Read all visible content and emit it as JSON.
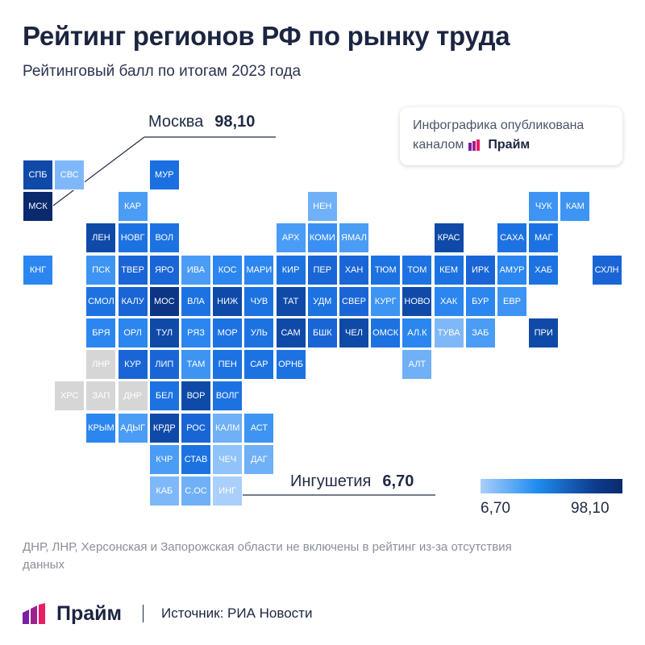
{
  "title": "Рейтинг регионов РФ по рынку труда",
  "subtitle": "Рейтинговый балл по итогам 2023 года",
  "publication": {
    "line1": "Инфографика опубликована",
    "line2": "каналом",
    "brand": "Прайм"
  },
  "callouts": {
    "top": {
      "name": "Москва",
      "value": "98,10"
    },
    "bottom": {
      "name": "Ингушетия",
      "value": "6,70"
    }
  },
  "legend": {
    "min": "6,70",
    "max": "98,10",
    "color_low": "#a9cffb",
    "color_high": "#0b2a6d"
  },
  "note": "ДНР, ЛНР, Херсонская и Запорожская области не включены в рейтинг из-за отсутствия данных",
  "footer": {
    "brand": "Прайм",
    "source": "Источник: РИА Новости"
  },
  "colors": {
    "na": "#d6d6d6",
    "brand_purple": "#7b1fa2",
    "brand_pink": "#e91e63"
  },
  "tiles": [
    {
      "label": "СПБ",
      "col": 0,
      "row": 0,
      "color": "#0f4aa8"
    },
    {
      "label": "СВС",
      "col": 1,
      "row": 0,
      "color": "#7fb8f8"
    },
    {
      "label": "МУР",
      "col": 4,
      "row": 0,
      "color": "#1b6fe0"
    },
    {
      "label": "МСК",
      "col": 0,
      "row": 1,
      "color": "#0b2a6d"
    },
    {
      "label": "КАР",
      "col": 3,
      "row": 1,
      "color": "#4b9cf5"
    },
    {
      "label": "НЕН",
      "col": 9,
      "row": 1,
      "color": "#6fb0f7"
    },
    {
      "label": "ЧУК",
      "col": 16,
      "row": 1,
      "color": "#3d94f3"
    },
    {
      "label": "КАМ",
      "col": 17,
      "row": 1,
      "color": "#3d94f3"
    },
    {
      "label": "ЛЕН",
      "col": 2,
      "row": 2,
      "color": "#0f4aa8"
    },
    {
      "label": "НОВГ",
      "col": 3,
      "row": 2,
      "color": "#1d72e2"
    },
    {
      "label": "ВОЛ",
      "col": 4,
      "row": 2,
      "color": "#1d72e2"
    },
    {
      "label": "АРХ",
      "col": 8,
      "row": 2,
      "color": "#4b9cf5"
    },
    {
      "label": "КОМИ",
      "col": 9,
      "row": 2,
      "color": "#3a8ff2"
    },
    {
      "label": "ЯМАЛ",
      "col": 10,
      "row": 2,
      "color": "#4b9cf5"
    },
    {
      "label": "КРАС",
      "col": 13,
      "row": 2,
      "color": "#0f4aa8"
    },
    {
      "label": "САХА",
      "col": 15,
      "row": 2,
      "color": "#1d72e2"
    },
    {
      "label": "МАГ",
      "col": 16,
      "row": 2,
      "color": "#1d72e2"
    },
    {
      "label": "КНГ",
      "col": 0,
      "row": 3,
      "color": "#2c86f0"
    },
    {
      "label": "ПСК",
      "col": 2,
      "row": 3,
      "color": "#3d94f3"
    },
    {
      "label": "ТВЕР",
      "col": 3,
      "row": 3,
      "color": "#1a65d6"
    },
    {
      "label": "ЯРО",
      "col": 4,
      "row": 3,
      "color": "#1a65d6"
    },
    {
      "label": "ИВА",
      "col": 5,
      "row": 3,
      "color": "#4b9cf5"
    },
    {
      "label": "КОС",
      "col": 6,
      "row": 3,
      "color": "#2c86f0"
    },
    {
      "label": "МАРИ",
      "col": 7,
      "row": 3,
      "color": "#2c86f0"
    },
    {
      "label": "КИР",
      "col": 8,
      "row": 3,
      "color": "#1d72e2"
    },
    {
      "label": "ПЕР",
      "col": 9,
      "row": 3,
      "color": "#1a65d6"
    },
    {
      "label": "ХАН",
      "col": 10,
      "row": 3,
      "color": "#1a65d6"
    },
    {
      "label": "ТЮМ",
      "col": 11,
      "row": 3,
      "color": "#1d72e2"
    },
    {
      "label": "ТОМ",
      "col": 12,
      "row": 3,
      "color": "#1d72e2"
    },
    {
      "label": "КЕМ",
      "col": 13,
      "row": 3,
      "color": "#1d72e2"
    },
    {
      "label": "ИРК",
      "col": 14,
      "row": 3,
      "color": "#1a65d6"
    },
    {
      "label": "АМУР",
      "col": 15,
      "row": 3,
      "color": "#2c86f0"
    },
    {
      "label": "ХАБ",
      "col": 16,
      "row": 3,
      "color": "#1d72e2"
    },
    {
      "label": "СХЛН",
      "col": 18,
      "row": 3,
      "color": "#1a65d6"
    },
    {
      "label": "СМОЛ",
      "col": 2,
      "row": 4,
      "color": "#1d72e2"
    },
    {
      "label": "КАЛУ",
      "col": 3,
      "row": 4,
      "color": "#1a65d6"
    },
    {
      "label": "МОС",
      "col": 4,
      "row": 4,
      "color": "#0c3585"
    },
    {
      "label": "ВЛА",
      "col": 5,
      "row": 4,
      "color": "#1d72e2"
    },
    {
      "label": "НИЖ",
      "col": 6,
      "row": 4,
      "color": "#0f4aa8"
    },
    {
      "label": "ЧУВ",
      "col": 7,
      "row": 4,
      "color": "#1d72e2"
    },
    {
      "label": "ТАТ",
      "col": 8,
      "row": 4,
      "color": "#0f4aa8"
    },
    {
      "label": "УДМ",
      "col": 9,
      "row": 4,
      "color": "#1d72e2"
    },
    {
      "label": "СВЕР",
      "col": 10,
      "row": 4,
      "color": "#1a65d6"
    },
    {
      "label": "КУРГ",
      "col": 11,
      "row": 4,
      "color": "#3d94f3"
    },
    {
      "label": "НОВО",
      "col": 12,
      "row": 4,
      "color": "#0f4aa8"
    },
    {
      "label": "ХАК",
      "col": 13,
      "row": 4,
      "color": "#2c86f0"
    },
    {
      "label": "БУР",
      "col": 14,
      "row": 4,
      "color": "#2c86f0"
    },
    {
      "label": "ЕВР",
      "col": 15,
      "row": 4,
      "color": "#3d94f3"
    },
    {
      "label": "БРЯ",
      "col": 2,
      "row": 5,
      "color": "#2c86f0"
    },
    {
      "label": "ОРЛ",
      "col": 3,
      "row": 5,
      "color": "#2c86f0"
    },
    {
      "label": "ТУЛ",
      "col": 4,
      "row": 5,
      "color": "#0f4aa8"
    },
    {
      "label": "РЯЗ",
      "col": 5,
      "row": 5,
      "color": "#2c86f0"
    },
    {
      "label": "МОР",
      "col": 6,
      "row": 5,
      "color": "#1d72e2"
    },
    {
      "label": "УЛЬ",
      "col": 7,
      "row": 5,
      "color": "#1d72e2"
    },
    {
      "label": "САМ",
      "col": 8,
      "row": 5,
      "color": "#0f4aa8"
    },
    {
      "label": "БШК",
      "col": 9,
      "row": 5,
      "color": "#1a65d6"
    },
    {
      "label": "ЧЕЛ",
      "col": 10,
      "row": 5,
      "color": "#0f4aa8"
    },
    {
      "label": "ОМСК",
      "col": 11,
      "row": 5,
      "color": "#1d72e2"
    },
    {
      "label": "АЛ.К",
      "col": 12,
      "row": 5,
      "color": "#2c86f0"
    },
    {
      "label": "ТУВА",
      "col": 13,
      "row": 5,
      "color": "#7fb8f8"
    },
    {
      "label": "ЗАБ",
      "col": 14,
      "row": 5,
      "color": "#4b9cf5"
    },
    {
      "label": "ПРИ",
      "col": 16,
      "row": 5,
      "color": "#0f4aa8"
    },
    {
      "label": "ЛНР",
      "col": 2,
      "row": 6,
      "color": "#d6d6d6",
      "na": true
    },
    {
      "label": "КУР",
      "col": 3,
      "row": 6,
      "color": "#1a65d6"
    },
    {
      "label": "ЛИП",
      "col": 4,
      "row": 6,
      "color": "#1a65d6"
    },
    {
      "label": "ТАМ",
      "col": 5,
      "row": 6,
      "color": "#3d94f3"
    },
    {
      "label": "ПЕН",
      "col": 6,
      "row": 6,
      "color": "#1d72e2"
    },
    {
      "label": "САР",
      "col": 7,
      "row": 6,
      "color": "#1d72e2"
    },
    {
      "label": "ОРНБ",
      "col": 8,
      "row": 6,
      "color": "#1d72e2"
    },
    {
      "label": "АЛТ",
      "col": 12,
      "row": 6,
      "color": "#6fb0f7"
    },
    {
      "label": "ХРС",
      "col": 1,
      "row": 7,
      "color": "#d6d6d6",
      "na": true
    },
    {
      "label": "ЗАП",
      "col": 2,
      "row": 7,
      "color": "#d6d6d6",
      "na": true
    },
    {
      "label": "ДНР",
      "col": 3,
      "row": 7,
      "color": "#d6d6d6",
      "na": true
    },
    {
      "label": "БЕЛ",
      "col": 4,
      "row": 7,
      "color": "#1d72e2"
    },
    {
      "label": "ВОР",
      "col": 5,
      "row": 7,
      "color": "#0f4aa8"
    },
    {
      "label": "ВОЛГ",
      "col": 6,
      "row": 7,
      "color": "#1d72e2"
    },
    {
      "label": "КРЫМ",
      "col": 2,
      "row": 8,
      "color": "#2c86f0"
    },
    {
      "label": "АДЫГ",
      "col": 3,
      "row": 8,
      "color": "#4b9cf5"
    },
    {
      "label": "КРДР",
      "col": 4,
      "row": 8,
      "color": "#0f4aa8"
    },
    {
      "label": "РОС",
      "col": 5,
      "row": 8,
      "color": "#1a65d6"
    },
    {
      "label": "КАЛМ",
      "col": 6,
      "row": 8,
      "color": "#6fb0f7"
    },
    {
      "label": "АСТ",
      "col": 7,
      "row": 8,
      "color": "#3d94f3"
    },
    {
      "label": "КЧР",
      "col": 4,
      "row": 9,
      "color": "#4b9cf5"
    },
    {
      "label": "СТАВ",
      "col": 5,
      "row": 9,
      "color": "#1d72e2"
    },
    {
      "label": "ЧЕЧ",
      "col": 6,
      "row": 9,
      "color": "#8fc3fa"
    },
    {
      "label": "ДАГ",
      "col": 7,
      "row": 9,
      "color": "#6fb0f7"
    },
    {
      "label": "КАБ",
      "col": 4,
      "row": 10,
      "color": "#7fb8f8"
    },
    {
      "label": "С.ОС",
      "col": 5,
      "row": 10,
      "color": "#6fb0f7"
    },
    {
      "label": "ИНГ",
      "col": 6,
      "row": 10,
      "color": "#a9cffb"
    }
  ]
}
